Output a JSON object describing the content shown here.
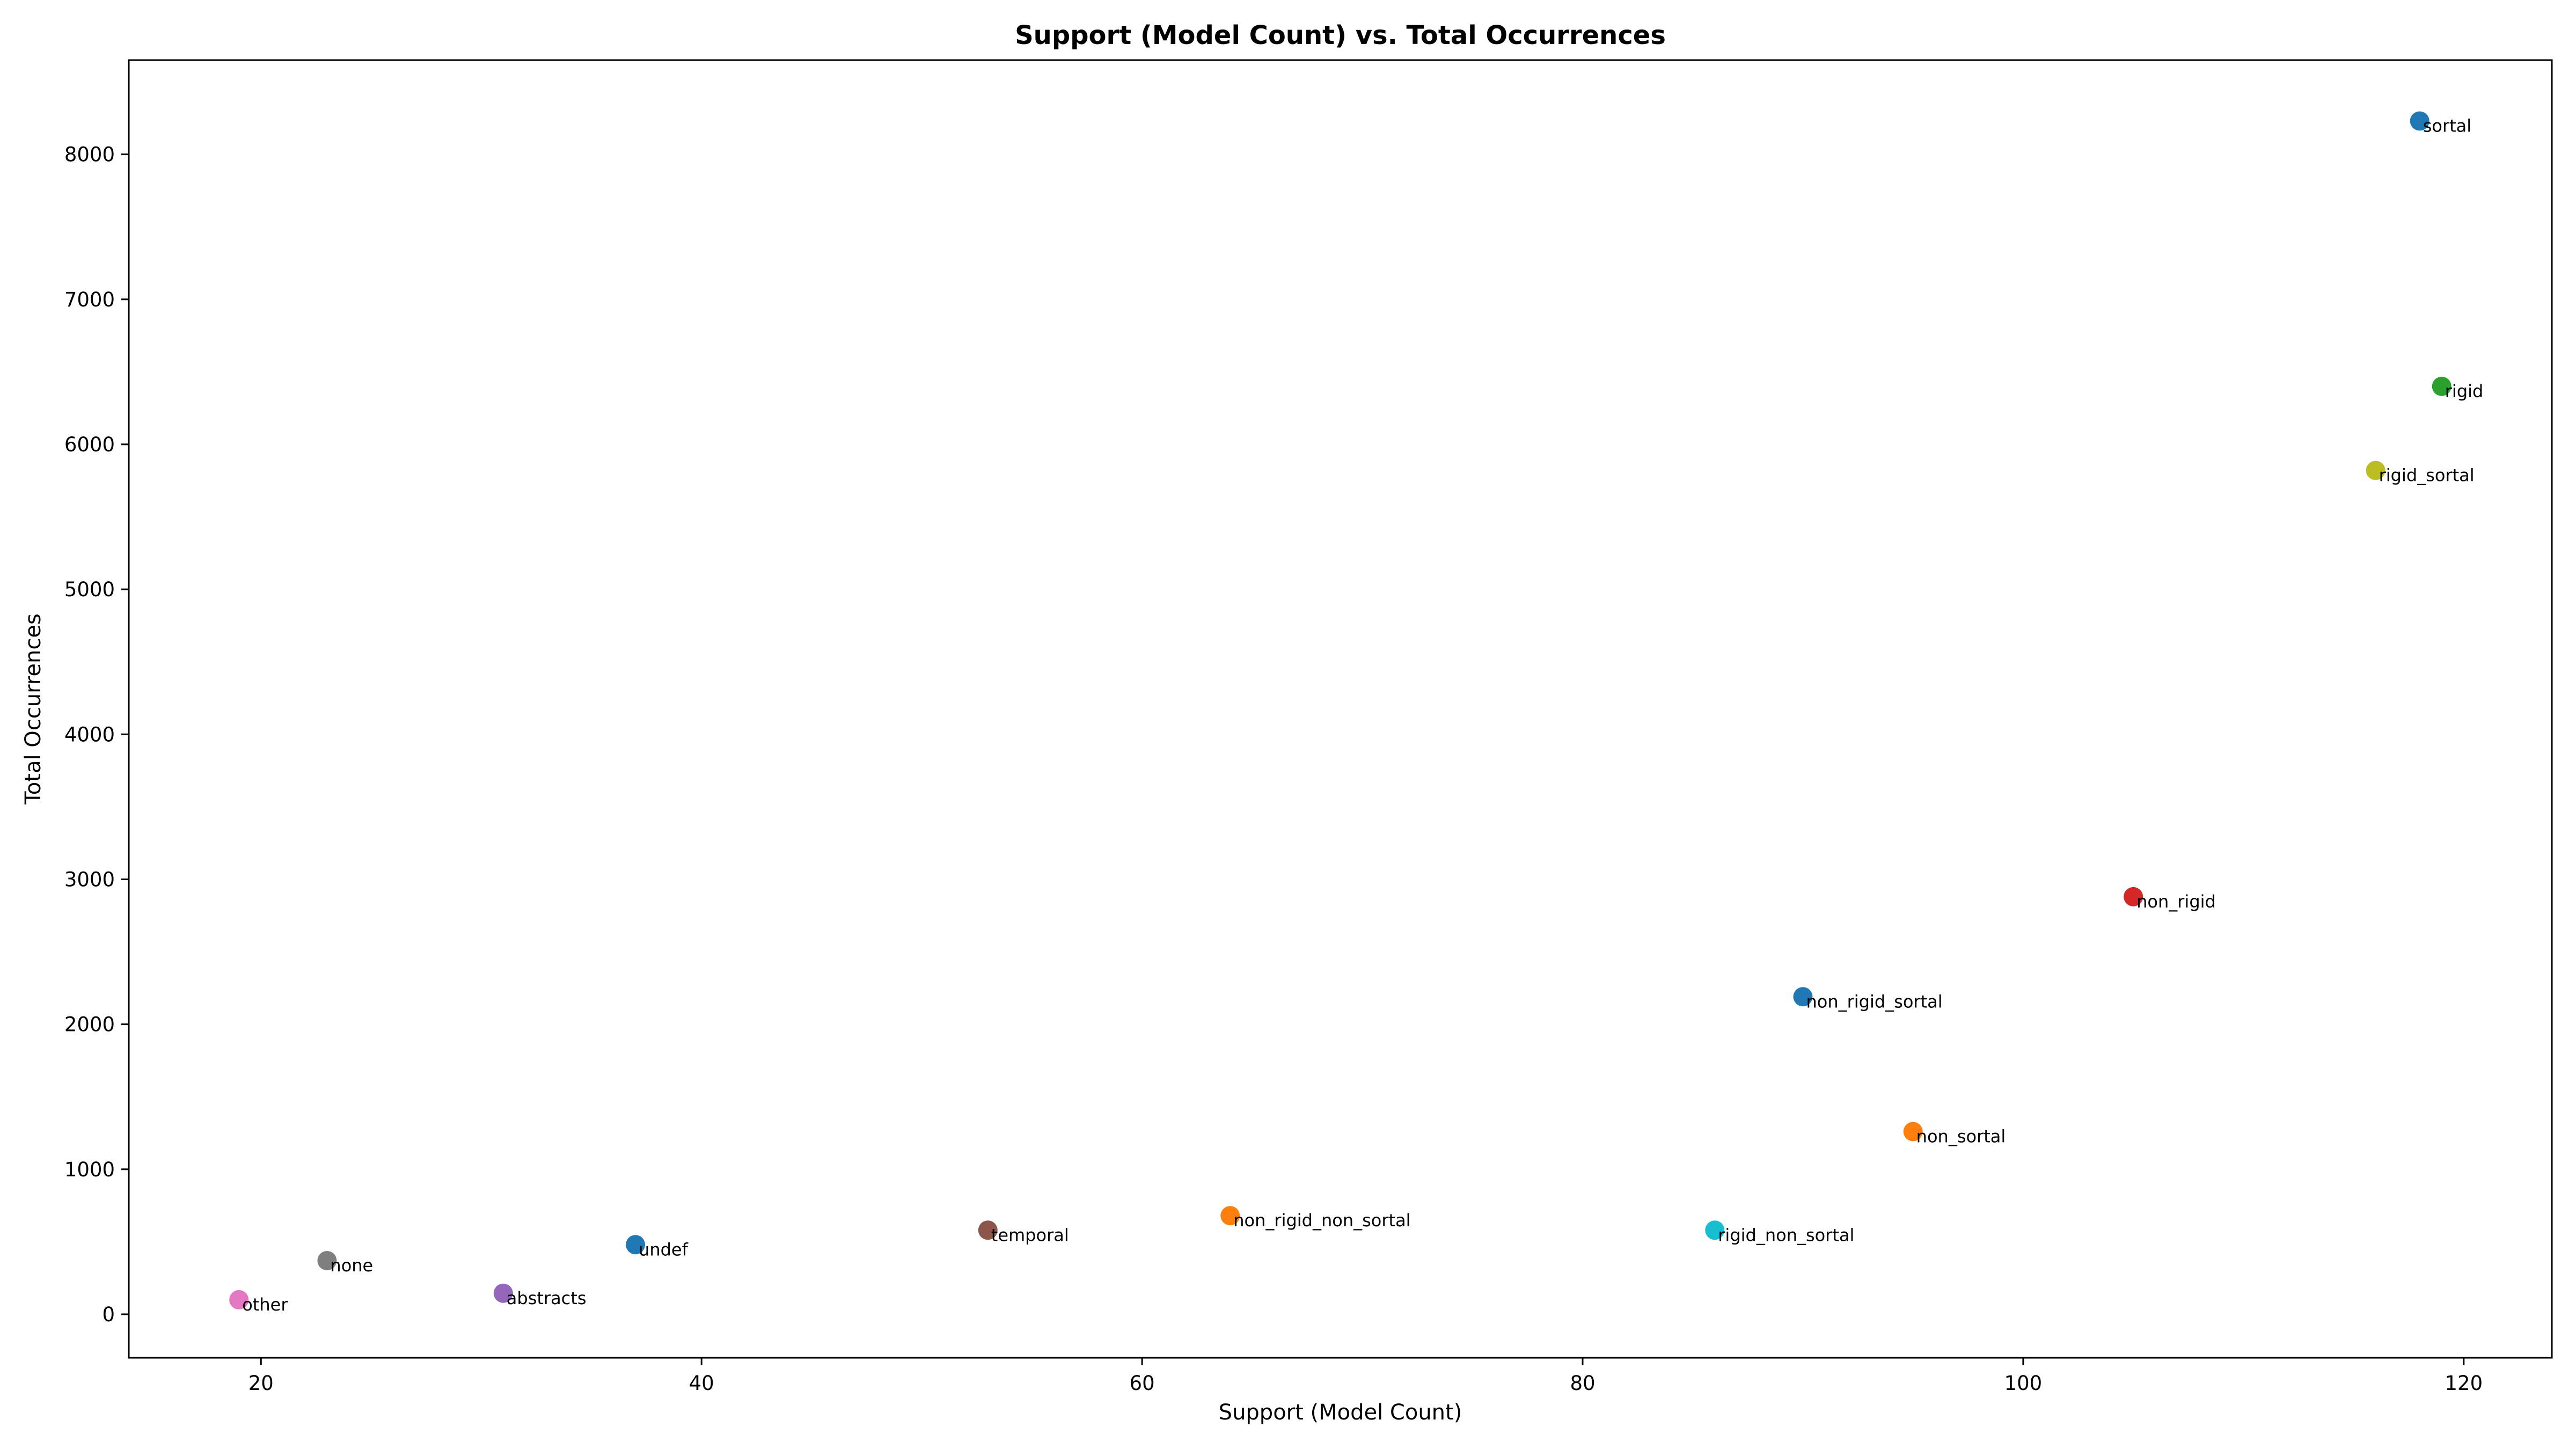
{
  "chart_data": {
    "type": "scatter",
    "title": "Support (Model Count) vs. Total Occurrences",
    "xlabel": "Support (Model Count)",
    "ylabel": "Total Occurrences",
    "xlim": [
      14,
      124
    ],
    "ylim": [
      -300,
      8650
    ],
    "xticks": [
      20,
      40,
      60,
      80,
      100,
      120
    ],
    "yticks": [
      0,
      1000,
      2000,
      3000,
      4000,
      5000,
      6000,
      7000,
      8000
    ],
    "grid": false,
    "points": [
      {
        "label": "sortal",
        "x": 118,
        "y": 8230,
        "color": "#1f77b4"
      },
      {
        "label": "rigid",
        "x": 119,
        "y": 6400,
        "color": "#2ca02c"
      },
      {
        "label": "rigid_sortal",
        "x": 116,
        "y": 5820,
        "color": "#bcbd22"
      },
      {
        "label": "non_rigid",
        "x": 105,
        "y": 2880,
        "color": "#d62728"
      },
      {
        "label": "non_rigid_sortal",
        "x": 90,
        "y": 2190,
        "color": "#1f77b4"
      },
      {
        "label": "non_sortal",
        "x": 95,
        "y": 1260,
        "color": "#ff7f0e"
      },
      {
        "label": "non_rigid_non_sortal",
        "x": 64,
        "y": 680,
        "color": "#ff7f0e"
      },
      {
        "label": "rigid_non_sortal",
        "x": 86,
        "y": 580,
        "color": "#17becf"
      },
      {
        "label": "temporal",
        "x": 53,
        "y": 580,
        "color": "#8c564b"
      },
      {
        "label": "undef",
        "x": 37,
        "y": 480,
        "color": "#1f77b4"
      },
      {
        "label": "none",
        "x": 23,
        "y": 370,
        "color": "#7f7f7f"
      },
      {
        "label": "abstracts",
        "x": 31,
        "y": 145,
        "color": "#9467bd"
      },
      {
        "label": "other",
        "x": 19,
        "y": 100,
        "color": "#e377c2"
      }
    ]
  }
}
